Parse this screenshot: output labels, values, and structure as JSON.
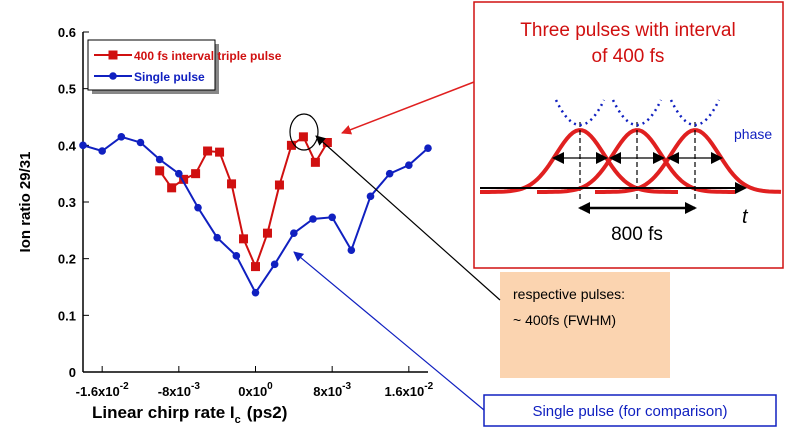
{
  "chart_data": {
    "type": "line",
    "y_label": "Ion ratio 29/31",
    "x_label": "Linear chirp rate  I",
    "x_label_sub": "c",
    "x_label_unit": "(ps2)",
    "xlim": [
      -0.018,
      0.018
    ],
    "ylim": [
      0,
      0.6
    ],
    "xticks": [
      {
        "value": -0.016,
        "label": "-1.6x10",
        "exponent": "-2"
      },
      {
        "value": -0.008,
        "label": "-8x10",
        "exponent": "-3"
      },
      {
        "value": 0,
        "label": "0x10",
        "exponent": "0"
      },
      {
        "value": 0.008,
        "label": "8x10",
        "exponent": "-3"
      },
      {
        "value": 0.016,
        "label": "1.6x10",
        "exponent": "-2"
      }
    ],
    "yticks": [
      0,
      0.1,
      0.2,
      0.3,
      0.4,
      0.5,
      0.6
    ],
    "series": [
      {
        "name": "400 fs interval triple pulse",
        "color": "#d01010",
        "marker": "square",
        "x": [
          -0.01,
          -0.00875,
          -0.0075,
          -0.00625,
          -0.005,
          -0.00375,
          -0.0025,
          -0.00125,
          0,
          0.00125,
          0.0025,
          0.00375,
          0.005,
          0.00625,
          0.0075
        ],
        "values": [
          0.355,
          0.325,
          0.34,
          0.35,
          0.39,
          0.388,
          0.332,
          0.235,
          0.186,
          0.245,
          0.33,
          0.4,
          0.415,
          0.37,
          0.405
        ]
      },
      {
        "name": "Single pulse",
        "color": "#1020c0",
        "marker": "circle",
        "x": [
          -0.018,
          -0.016,
          -0.014,
          -0.012,
          -0.01,
          -0.008,
          -0.006,
          -0.004,
          -0.002,
          0,
          0.002,
          0.004,
          0.006,
          0.008,
          0.01,
          0.012,
          0.014,
          0.016,
          0.018
        ],
        "values": [
          0.4,
          0.39,
          0.415,
          0.405,
          0.375,
          0.35,
          0.29,
          0.237,
          0.205,
          0.14,
          0.19,
          0.245,
          0.27,
          0.273,
          0.215,
          0.31,
          0.35,
          0.365,
          0.395
        ]
      }
    ]
  },
  "inset": {
    "title_line1": "Three pulses with interval",
    "title_line2": "of 400 fs",
    "phase": "phase",
    "spacing": "800 fs",
    "axis": "t"
  },
  "note": {
    "line1": "respective pulses:",
    "line2": "~ 400fs (FWHM)"
  },
  "comparison": "Single pulse (for comparison)"
}
